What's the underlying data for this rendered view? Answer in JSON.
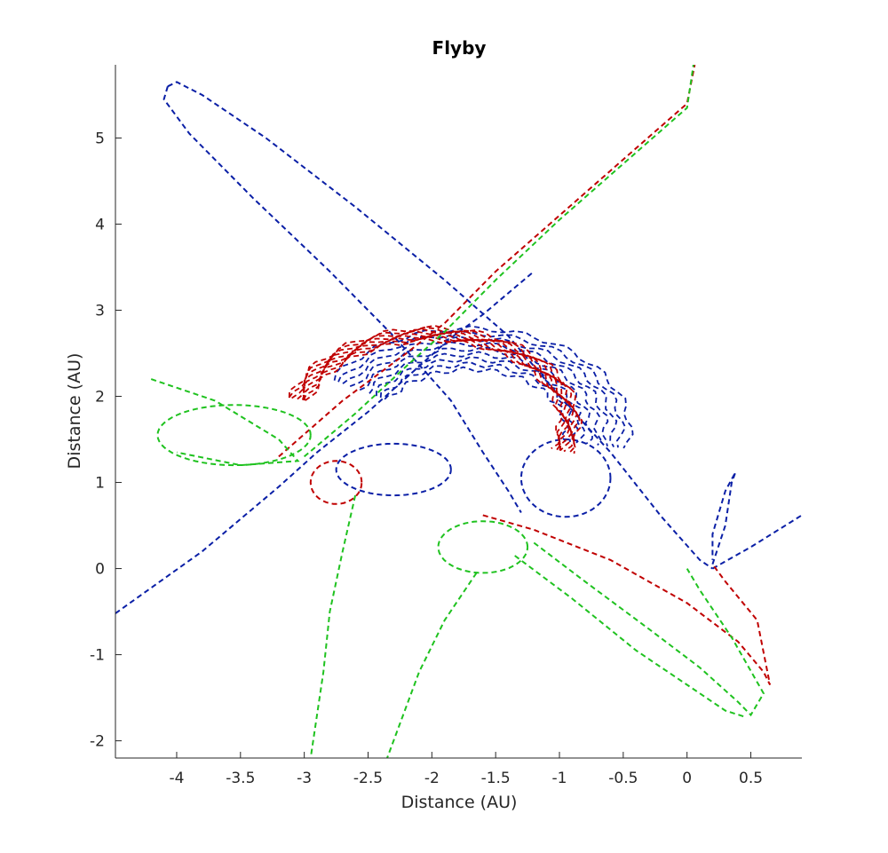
{
  "chart_data": {
    "type": "line",
    "title": "Flyby",
    "xlabel": "Distance (AU)",
    "ylabel": "Distance (AU)",
    "xlim": [
      -4.48,
      0.9
    ],
    "ylim": [
      -2.2,
      5.85
    ],
    "xticks": [
      -4,
      -3.5,
      -3,
      -2.5,
      -2,
      -1.5,
      -1,
      -0.5,
      0,
      0.5
    ],
    "yticks": [
      -2,
      -1,
      0,
      1,
      2,
      3,
      4,
      5
    ],
    "grid": false,
    "line_style": "dashed",
    "colors": {
      "blue": "#0a1fa6",
      "red": "#c00000",
      "green": "#1fc21f"
    },
    "series": [
      {
        "color": "blue",
        "segments": [
          {
            "kind": "polyline",
            "points": [
              [
                -4.48,
                -0.52
              ],
              [
                -3.8,
                0.2
              ],
              [
                -3.2,
                0.95
              ],
              [
                -2.9,
                1.35
              ],
              [
                -2.5,
                1.82
              ],
              [
                -2.1,
                2.35
              ],
              [
                -1.85,
                2.68
              ],
              [
                -1.6,
                2.95
              ],
              [
                -1.4,
                3.2
              ],
              [
                -1.2,
                3.45
              ]
            ]
          },
          {
            "kind": "polyline",
            "points": [
              [
                -4.07,
                5.6
              ],
              [
                -4.0,
                5.65
              ],
              [
                -3.8,
                5.5
              ],
              [
                -3.3,
                5.0
              ],
              [
                -2.6,
                4.2
              ],
              [
                -1.9,
                3.35
              ],
              [
                -1.4,
                2.7
              ],
              [
                -1.0,
                2.0
              ],
              [
                -0.6,
                1.35
              ],
              [
                -0.2,
                0.6
              ],
              [
                0.1,
                0.1
              ],
              [
                0.2,
                0.0
              ]
            ]
          },
          {
            "kind": "polyline",
            "points": [
              [
                -4.07,
                5.6
              ],
              [
                -4.1,
                5.45
              ],
              [
                -3.9,
                5.05
              ],
              [
                -3.4,
                4.3
              ],
              [
                -2.8,
                3.45
              ],
              [
                -2.3,
                2.7
              ],
              [
                -1.85,
                1.95
              ],
              [
                -1.6,
                1.35
              ],
              [
                -1.4,
                0.9
              ],
              [
                -1.3,
                0.65
              ]
            ]
          },
          {
            "kind": "polyline",
            "points": [
              [
                0.2,
                0.05
              ],
              [
                0.3,
                0.5
              ],
              [
                0.35,
                1.0
              ],
              [
                0.38,
                1.12
              ],
              [
                0.3,
                0.9
              ],
              [
                0.2,
                0.4
              ],
              [
                0.2,
                0.1
              ]
            ]
          },
          {
            "kind": "polyline",
            "points": [
              [
                0.2,
                0.0
              ],
              [
                0.5,
                0.25
              ],
              [
                0.9,
                0.62
              ]
            ]
          },
          {
            "kind": "loop",
            "center": [
              -2.3,
              1.15
            ],
            "rx": 0.45,
            "ry": 0.3
          },
          {
            "kind": "loop",
            "center": [
              -0.95,
              1.05
            ],
            "rx": 0.35,
            "ry": 0.45
          },
          {
            "kind": "band",
            "center": [
              -1.7,
              1.6
            ],
            "inner_r": 0.75,
            "outer_r": 1.25,
            "from_deg": 150,
            "to_deg": -10
          }
        ]
      },
      {
        "color": "red",
        "segments": [
          {
            "kind": "polyline",
            "points": [
              [
                -3.2,
                1.3
              ],
              [
                -2.7,
                1.95
              ],
              [
                -2.2,
                2.5
              ],
              [
                -1.9,
                2.85
              ],
              [
                -1.5,
                3.45
              ],
              [
                -1.0,
                4.1
              ],
              [
                -0.5,
                4.75
              ],
              [
                0.0,
                5.4
              ],
              [
                0.06,
                5.85
              ]
            ]
          },
          {
            "kind": "band",
            "center": [
              -2.0,
              1.7
            ],
            "inner_r": 1.0,
            "outer_r": 1.15,
            "from_deg": 165,
            "to_deg": -20
          },
          {
            "kind": "polyline",
            "points": [
              [
                -1.6,
                0.62
              ],
              [
                -1.2,
                0.45
              ],
              [
                -0.6,
                0.1
              ],
              [
                0.0,
                -0.4
              ],
              [
                0.4,
                -0.85
              ],
              [
                0.6,
                -1.2
              ],
              [
                0.65,
                -1.35
              ],
              [
                0.55,
                -0.6
              ],
              [
                0.3,
                -0.15
              ],
              [
                0.2,
                0.05
              ]
            ]
          },
          {
            "kind": "loop",
            "center": [
              -2.75,
              1.0
            ],
            "rx": 0.2,
            "ry": 0.25
          }
        ]
      },
      {
        "color": "green",
        "segments": [
          {
            "kind": "polyline",
            "points": [
              [
                -3.0,
                1.3
              ],
              [
                -2.6,
                1.8
              ],
              [
                -2.2,
                2.35
              ],
              [
                -1.9,
                2.75
              ],
              [
                -1.5,
                3.35
              ],
              [
                -1.0,
                4.05
              ],
              [
                -0.5,
                4.7
              ],
              [
                0.0,
                5.35
              ],
              [
                0.05,
                5.85
              ]
            ]
          },
          {
            "kind": "loop",
            "center": [
              -3.55,
              1.55
            ],
            "rx": 0.6,
            "ry": 0.35
          },
          {
            "kind": "polyline",
            "points": [
              [
                -4.2,
                2.2
              ],
              [
                -3.7,
                1.95
              ],
              [
                -3.2,
                1.5
              ],
              [
                -3.05,
                1.25
              ],
              [
                -3.5,
                1.2
              ],
              [
                -4.0,
                1.35
              ]
            ]
          },
          {
            "kind": "polyline",
            "points": [
              [
                -2.6,
                0.85
              ],
              [
                -2.7,
                0.2
              ],
              [
                -2.8,
                -0.5
              ],
              [
                -2.85,
                -1.2
              ],
              [
                -2.95,
                -2.2
              ]
            ]
          },
          {
            "kind": "polyline",
            "points": [
              [
                -1.65,
                -0.05
              ],
              [
                -1.9,
                -0.6
              ],
              [
                -2.1,
                -1.2
              ],
              [
                -2.35,
                -2.2
              ]
            ]
          },
          {
            "kind": "loop",
            "center": [
              -1.6,
              0.25
            ],
            "rx": 0.35,
            "ry": 0.3
          },
          {
            "kind": "polyline",
            "points": [
              [
                -1.2,
                0.3
              ],
              [
                -0.8,
                -0.15
              ],
              [
                -0.3,
                -0.7
              ],
              [
                0.1,
                -1.15
              ],
              [
                0.4,
                -1.55
              ],
              [
                0.5,
                -1.7
              ],
              [
                0.6,
                -1.45
              ],
              [
                0.35,
                -0.8
              ],
              [
                0.1,
                -0.25
              ],
              [
                0.0,
                0.0
              ]
            ]
          },
          {
            "kind": "polyline",
            "points": [
              [
                -1.35,
                0.15
              ],
              [
                -0.9,
                -0.35
              ],
              [
                -0.4,
                -0.95
              ],
              [
                0.0,
                -1.35
              ],
              [
                0.3,
                -1.65
              ],
              [
                0.45,
                -1.72
              ]
            ]
          }
        ]
      }
    ]
  }
}
